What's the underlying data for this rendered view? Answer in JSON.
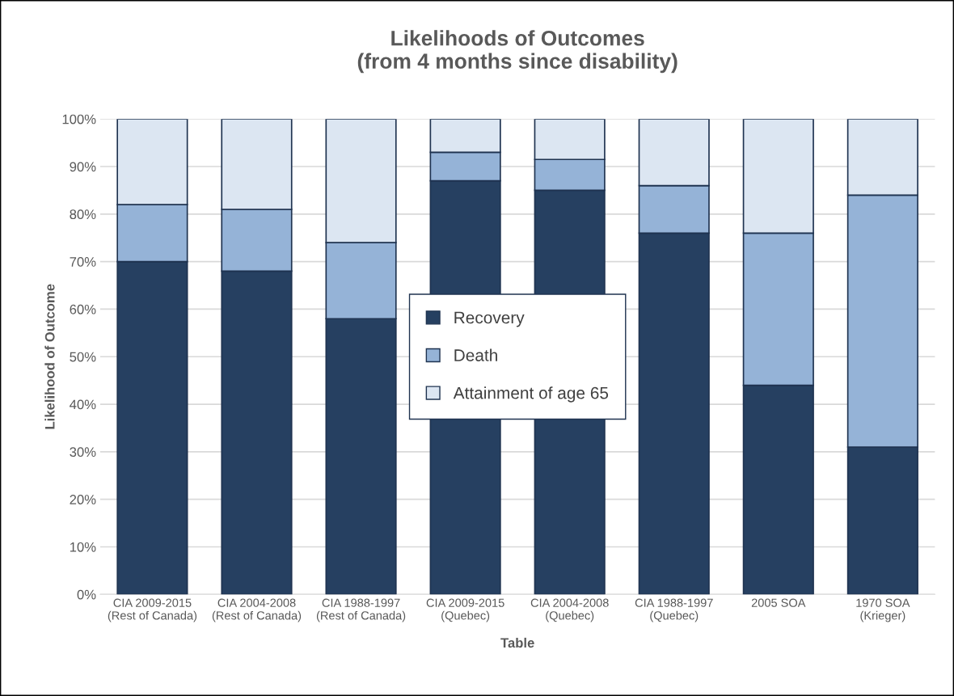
{
  "chart_data": {
    "type": "bar",
    "title": "Likelihoods of Outcomes\n(from 4 months since disability)",
    "xlabel": "Table",
    "ylabel": "Likelihood of Outcome",
    "categories": [
      "CIA 2009-2015\n(Rest of Canada)",
      "CIA 2004-2008\n(Rest of Canada)",
      "CIA 1988-1997\n(Rest of Canada)",
      "CIA 2009-2015\n(Quebec)",
      "CIA 2004-2008\n(Quebec)",
      "CIA 1988-1997\n(Quebec)",
      "2005 SOA",
      "1970 SOA\n(Krieger)"
    ],
    "stacked": true,
    "series": [
      {
        "name": "Recovery",
        "color": "#264061",
        "values": [
          70,
          68,
          58,
          87,
          85,
          76,
          44,
          31
        ]
      },
      {
        "name": "Death",
        "color": "#95b3d7",
        "values": [
          12,
          13,
          16,
          6,
          6.5,
          10,
          32,
          53
        ]
      },
      {
        "name": "Attainment of age 65",
        "color": "#dce6f2",
        "values": [
          18,
          19,
          26,
          7,
          8.5,
          14,
          24,
          16
        ]
      }
    ],
    "ylim": [
      0,
      100
    ],
    "yticks": [
      {
        "value": 0,
        "label": "0%"
      },
      {
        "value": 10,
        "label": "10%"
      },
      {
        "value": 20,
        "label": "20%"
      },
      {
        "value": 30,
        "label": "30%"
      },
      {
        "value": 40,
        "label": "40%"
      },
      {
        "value": 50,
        "label": "50%"
      },
      {
        "value": 60,
        "label": "60%"
      },
      {
        "value": 70,
        "label": "70%"
      },
      {
        "value": 80,
        "label": "80%"
      },
      {
        "value": 90,
        "label": "90%"
      },
      {
        "value": 100,
        "label": "100%"
      }
    ],
    "grid": "y",
    "legend": "center"
  }
}
